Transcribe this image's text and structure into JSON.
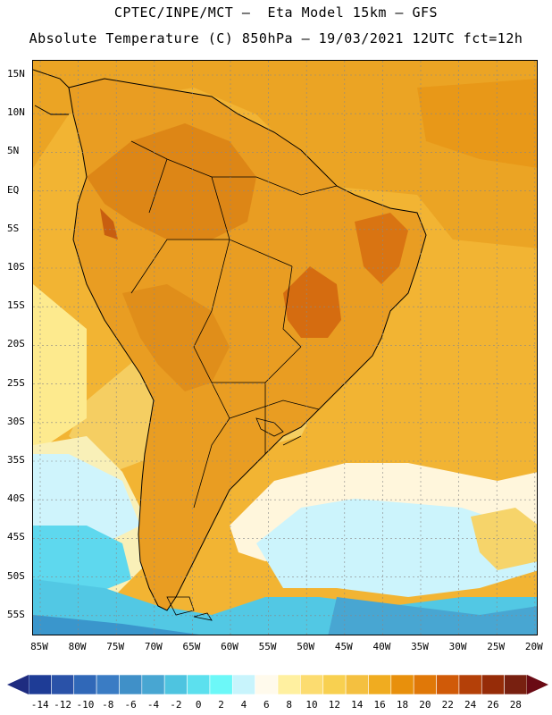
{
  "header": {
    "title_line1": "CPTEC/INPE/MCT –  Eta Model 15km – GFS",
    "title_line2": "Absolute Temperature (C) 850hPa – 19/03/2021 12UTC fct=12h"
  },
  "map": {
    "lat_labels": [
      "15N",
      "10N",
      "5N",
      "EQ",
      "5S",
      "10S",
      "15S",
      "20S",
      "25S",
      "30S",
      "35S",
      "40S",
      "45S",
      "50S",
      "55S"
    ],
    "lon_labels": [
      "85W",
      "80W",
      "75W",
      "70W",
      "65W",
      "60W",
      "55W",
      "50W",
      "45W",
      "40W",
      "35W",
      "30W",
      "25W",
      "20W"
    ],
    "grid": "dotted"
  },
  "colorbar": {
    "labels": [
      "-14",
      "-12",
      "-10",
      "-8",
      "-6",
      "-4",
      "-2",
      "0",
      "2",
      "4",
      "6",
      "8",
      "10",
      "12",
      "14",
      "16",
      "18",
      "20",
      "22",
      "24",
      "26",
      "28"
    ],
    "colors": [
      "#1e3c96",
      "#2a52a8",
      "#3068b8",
      "#3a7cc4",
      "#4090c8",
      "#48a6d2",
      "#4ec4e0",
      "#5ce0ee",
      "#6cf8f8",
      "#c8f4fc",
      "#fffaec",
      "#fff0a0",
      "#fcdc70",
      "#f8d050",
      "#f4c040",
      "#f0ac20",
      "#e8900c",
      "#e07808",
      "#d05a08",
      "#b44008",
      "#962c08",
      "#782010"
    ]
  },
  "colors": {
    "ocean_warm": "#f0b030",
    "land_hot": "#e08a18",
    "land_hotter": "#d26a10",
    "south_cold": "#52c8e4",
    "far_south": "#3a96cc",
    "pale_yellow": "#fdf2a8",
    "pale_blue": "#cff4fc"
  }
}
